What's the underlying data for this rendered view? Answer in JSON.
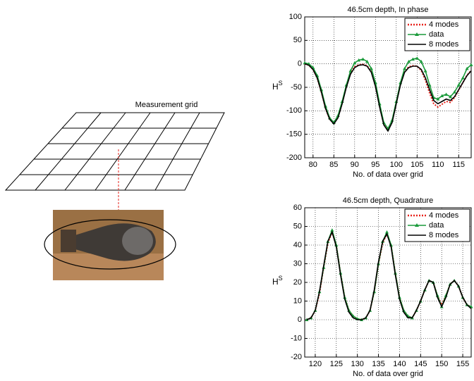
{
  "diagram": {
    "label": "Measurement grid"
  },
  "chart_data": [
    {
      "type": "line",
      "title": "46.5cm depth, In phase",
      "ylabel": {
        "base": "H",
        "superscript": "S"
      },
      "xlabel": "No. of data over grid",
      "x": [
        78,
        79,
        80,
        81,
        82,
        83,
        84,
        85,
        86,
        87,
        88,
        89,
        90,
        91,
        92,
        93,
        94,
        95,
        96,
        97,
        98,
        99,
        100,
        101,
        102,
        103,
        104,
        105,
        106,
        107,
        108,
        109,
        110,
        111,
        112,
        113,
        114,
        115,
        116,
        117,
        118
      ],
      "series": [
        {
          "name": "4 modes",
          "color": "#e8231c",
          "line_style": "dotted",
          "values": [
            0,
            -3,
            -12,
            -30,
            -60,
            -95,
            -118,
            -127,
            -113,
            -83,
            -48,
            -20,
            -6,
            -2,
            -1,
            -4,
            -16,
            -46,
            -90,
            -128,
            -140,
            -122,
            -82,
            -42,
            -16,
            -6,
            -4,
            -5,
            -14,
            -35,
            -62,
            -85,
            -92,
            -86,
            -80,
            -82,
            -72,
            -56,
            -40,
            -24,
            -14
          ]
        },
        {
          "name": "data",
          "color": "#1a9a3a",
          "line_style": "solid",
          "marker": "triangle",
          "values": [
            2,
            0,
            -8,
            -25,
            -55,
            -90,
            -115,
            -125,
            -110,
            -80,
            -45,
            -15,
            2,
            8,
            10,
            5,
            -10,
            -40,
            -85,
            -125,
            -138,
            -120,
            -80,
            -40,
            -10,
            5,
            10,
            12,
            5,
            -15,
            -45,
            -72,
            -75,
            -68,
            -65,
            -70,
            -60,
            -45,
            -30,
            -10,
            -2
          ]
        },
        {
          "name": "8 modes",
          "color": "#000000",
          "line_style": "solid",
          "values": [
            0,
            -3,
            -12,
            -30,
            -60,
            -95,
            -118,
            -128,
            -115,
            -85,
            -50,
            -22,
            -8,
            -3,
            -2,
            -5,
            -18,
            -48,
            -92,
            -130,
            -143,
            -125,
            -85,
            -45,
            -18,
            -8,
            -5,
            -5,
            -12,
            -30,
            -55,
            -78,
            -85,
            -80,
            -75,
            -78,
            -70,
            -55,
            -40,
            -25,
            -15
          ]
        }
      ],
      "xlim": [
        78,
        118
      ],
      "xticks": [
        80,
        85,
        90,
        95,
        100,
        105,
        110,
        115
      ],
      "ylim": [
        -200,
        100
      ],
      "yticks": [
        -200,
        -150,
        -100,
        -50,
        0,
        50,
        100
      ],
      "grid": true,
      "legend": "upper right"
    },
    {
      "type": "line",
      "title": "46.5cm depth, Quadrature",
      "ylabel": {
        "base": "H",
        "superscript": "S"
      },
      "xlabel": "No. of data over grid",
      "x": [
        118,
        119,
        120,
        121,
        122,
        123,
        124,
        125,
        126,
        127,
        128,
        129,
        130,
        131,
        132,
        133,
        134,
        135,
        136,
        137,
        138,
        139,
        140,
        141,
        142,
        143,
        144,
        145,
        146,
        147,
        148,
        149,
        150,
        151,
        152,
        153,
        154,
        155,
        156,
        157
      ],
      "series": [
        {
          "name": "4 modes",
          "color": "#e8231c",
          "line_style": "dotted",
          "values": [
            0,
            1,
            5,
            14,
            28,
            41,
            47,
            40,
            25,
            12,
            5,
            2,
            0.5,
            0,
            1,
            5,
            15,
            30,
            41,
            46,
            40,
            25,
            12,
            5,
            2,
            1,
            5,
            10,
            16,
            21,
            20,
            13,
            8,
            13,
            19,
            21,
            18,
            12,
            8,
            7
          ]
        },
        {
          "name": "data",
          "color": "#1a9a3a",
          "line_style": "solid",
          "marker": "triangle",
          "values": [
            0,
            1,
            5,
            15,
            28,
            42,
            48,
            40,
            25,
            12,
            5,
            2,
            0.5,
            0,
            1,
            5,
            15,
            30,
            42,
            47,
            40,
            25,
            12,
            5,
            2,
            1,
            5,
            10,
            16,
            21,
            20,
            13,
            7,
            13,
            19,
            21,
            18,
            12,
            8,
            7
          ]
        },
        {
          "name": "8 modes",
          "color": "#000000",
          "line_style": "solid",
          "values": [
            0,
            1,
            5,
            15,
            29,
            42,
            47,
            39,
            24,
            11,
            4,
            1,
            0,
            0,
            1,
            5,
            16,
            31,
            42,
            46,
            39,
            24,
            11,
            4,
            1,
            1,
            5,
            10,
            16,
            21,
            20,
            12,
            7,
            12,
            19,
            21,
            18,
            12,
            8,
            6
          ]
        }
      ],
      "xlim": [
        117.5,
        157
      ],
      "xticks": [
        120,
        125,
        130,
        135,
        140,
        145,
        150,
        155
      ],
      "ylim": [
        -20,
        60
      ],
      "yticks": [
        -20,
        -10,
        0,
        10,
        20,
        30,
        40,
        50,
        60
      ],
      "grid": true,
      "legend": "upper right"
    }
  ]
}
